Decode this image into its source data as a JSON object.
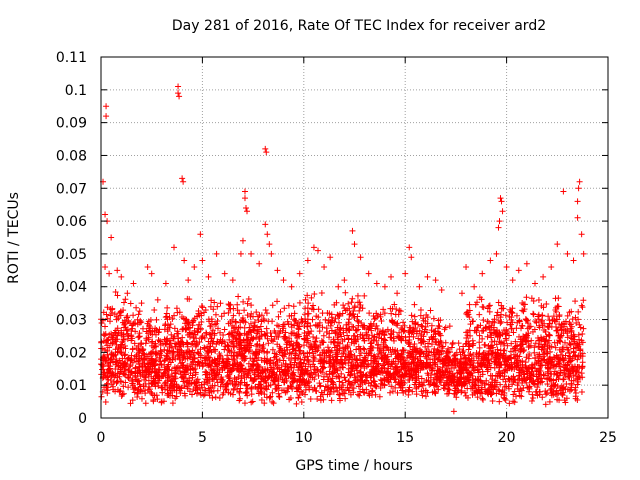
{
  "chart_data": {
    "type": "scatter",
    "title": "Day 281 of 2016, Rate Of TEC Index for receiver ard2",
    "xlabel": "GPS time / hours",
    "ylabel": "ROTI / TECUs",
    "xlim": [
      0,
      25
    ],
    "ylim": [
      0,
      0.11
    ],
    "xticks": [
      0,
      5,
      10,
      15,
      20,
      25
    ],
    "xtick_labels": [
      "0",
      "5",
      "10",
      "15",
      "20",
      "25"
    ],
    "yticks": [
      0,
      0.01,
      0.02,
      0.03,
      0.04,
      0.05,
      0.06,
      0.07,
      0.08,
      0.09,
      0.1,
      0.11
    ],
    "ytick_labels": [
      "0",
      "0.01",
      "0.02",
      "0.03",
      "0.04",
      "0.05",
      "0.06",
      "0.07",
      "0.08",
      "0.09",
      "0.1",
      "0.11"
    ],
    "grid": true,
    "marker": "+",
    "color": "#ff0000",
    "series": [
      {
        "name": "ROTI",
        "points": [
          [
            0.1,
            0.072
          ],
          [
            0.2,
            0.062
          ],
          [
            0.25,
            0.095
          ],
          [
            0.25,
            0.092
          ],
          [
            0.3,
            0.06
          ],
          [
            0.5,
            0.055
          ],
          [
            0.2,
            0.046
          ],
          [
            0.4,
            0.044
          ],
          [
            0.8,
            0.045
          ],
          [
            1.0,
            0.043
          ],
          [
            1.3,
            0.038
          ],
          [
            1.6,
            0.041
          ],
          [
            2.0,
            0.035
          ],
          [
            2.3,
            0.046
          ],
          [
            2.5,
            0.044
          ],
          [
            2.8,
            0.036
          ],
          [
            3.2,
            0.041
          ],
          [
            3.6,
            0.052
          ],
          [
            3.8,
            0.101
          ],
          [
            3.8,
            0.099
          ],
          [
            3.85,
            0.098
          ],
          [
            4.0,
            0.073
          ],
          [
            4.05,
            0.072
          ],
          [
            4.1,
            0.048
          ],
          [
            4.3,
            0.042
          ],
          [
            4.6,
            0.046
          ],
          [
            4.9,
            0.056
          ],
          [
            5.0,
            0.048
          ],
          [
            5.3,
            0.043
          ],
          [
            5.7,
            0.05
          ],
          [
            6.1,
            0.044
          ],
          [
            6.5,
            0.042
          ],
          [
            6.9,
            0.05
          ],
          [
            7.0,
            0.054
          ],
          [
            7.1,
            0.069
          ],
          [
            7.1,
            0.067
          ],
          [
            7.15,
            0.064
          ],
          [
            7.2,
            0.063
          ],
          [
            7.4,
            0.05
          ],
          [
            7.8,
            0.047
          ],
          [
            8.1,
            0.082
          ],
          [
            8.15,
            0.081
          ],
          [
            8.1,
            0.059
          ],
          [
            8.2,
            0.056
          ],
          [
            8.3,
            0.053
          ],
          [
            8.4,
            0.05
          ],
          [
            8.7,
            0.045
          ],
          [
            9.0,
            0.042
          ],
          [
            9.4,
            0.04
          ],
          [
            9.8,
            0.044
          ],
          [
            10.2,
            0.048
          ],
          [
            10.5,
            0.052
          ],
          [
            10.7,
            0.051
          ],
          [
            11.0,
            0.046
          ],
          [
            11.3,
            0.049
          ],
          [
            11.7,
            0.04
          ],
          [
            12.0,
            0.042
          ],
          [
            12.4,
            0.057
          ],
          [
            12.5,
            0.053
          ],
          [
            12.8,
            0.049
          ],
          [
            13.2,
            0.044
          ],
          [
            13.6,
            0.041
          ],
          [
            14.0,
            0.04
          ],
          [
            14.3,
            0.043
          ],
          [
            14.6,
            0.038
          ],
          [
            15.0,
            0.044
          ],
          [
            15.2,
            0.052
          ],
          [
            15.3,
            0.049
          ],
          [
            15.7,
            0.04
          ],
          [
            16.1,
            0.043
          ],
          [
            16.5,
            0.042
          ],
          [
            16.8,
            0.039
          ],
          [
            17.2,
            0.028
          ],
          [
            17.4,
            0.002
          ],
          [
            17.8,
            0.038
          ],
          [
            18.0,
            0.046
          ],
          [
            18.4,
            0.04
          ],
          [
            18.8,
            0.044
          ],
          [
            19.2,
            0.048
          ],
          [
            19.5,
            0.05
          ],
          [
            19.7,
            0.067
          ],
          [
            19.75,
            0.066
          ],
          [
            19.8,
            0.063
          ],
          [
            19.65,
            0.06
          ],
          [
            19.6,
            0.058
          ],
          [
            20.0,
            0.046
          ],
          [
            20.3,
            0.042
          ],
          [
            20.6,
            0.045
          ],
          [
            21.0,
            0.047
          ],
          [
            21.4,
            0.041
          ],
          [
            21.8,
            0.043
          ],
          [
            22.2,
            0.046
          ],
          [
            22.5,
            0.053
          ],
          [
            22.8,
            0.069
          ],
          [
            23.0,
            0.05
          ],
          [
            23.3,
            0.048
          ],
          [
            23.5,
            0.061
          ],
          [
            23.5,
            0.066
          ],
          [
            23.55,
            0.07
          ],
          [
            23.6,
            0.072
          ],
          [
            23.7,
            0.056
          ],
          [
            23.8,
            0.05
          ]
        ],
        "dense_band": {
          "description": "Continuous dense cloud of ROTI values across the full day",
          "x_range": [
            0,
            23.8
          ],
          "typical_low": 0.004,
          "typical_high": 0.035,
          "segments": [
            {
              "x": [
                0,
                1.5
              ],
              "low": 0.004,
              "high": 0.04
            },
            {
              "x": [
                1.5,
                4
              ],
              "low": 0.004,
              "high": 0.036
            },
            {
              "x": [
                4,
                7
              ],
              "low": 0.005,
              "high": 0.038
            },
            {
              "x": [
                7,
                10
              ],
              "low": 0.004,
              "high": 0.037
            },
            {
              "x": [
                10,
                13
              ],
              "low": 0.005,
              "high": 0.04
            },
            {
              "x": [
                13,
                17
              ],
              "low": 0.006,
              "high": 0.036
            },
            {
              "x": [
                17,
                18
              ],
              "low": 0.006,
              "high": 0.024
            },
            {
              "x": [
                18,
                21.5
              ],
              "low": 0.004,
              "high": 0.038
            },
            {
              "x": [
                21.5,
                23.8
              ],
              "low": 0.004,
              "high": 0.038
            }
          ]
        }
      }
    ]
  }
}
